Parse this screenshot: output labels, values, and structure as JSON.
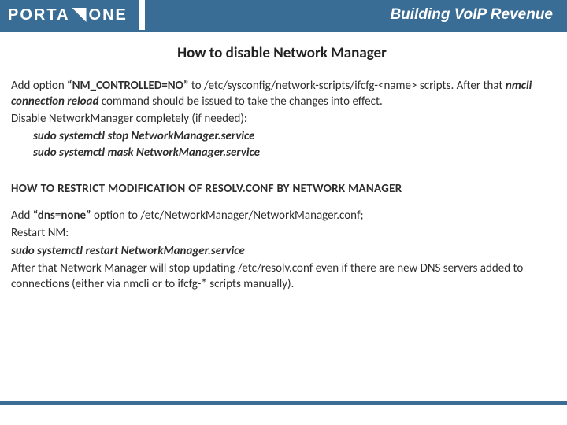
{
  "brand": {
    "name_left": "PORTA",
    "name_right": "ONE",
    "tagline": "Building VoIP Revenue",
    "accent_color": "#3a6d96"
  },
  "title": "How to disable Network Manager",
  "p1": {
    "t1": "Add option ",
    "opt": "“NM_CONTROLLED=NO”",
    "t2": " to /etc/sysconfig/network-scripts/ifcfg-<name> scripts. After that ",
    "cmd": "nmcli connection reload",
    "t3": " command should be issued to take the changes into effect."
  },
  "p2": "Disable NetworkManager completely (if needed):",
  "cmds1": {
    "a": "sudo systemctl stop NetworkManager.service",
    "b": "sudo systemctl mask NetworkManager.service"
  },
  "subhead": "HOW TO RESTRICT MODIFICATION OF RESOLV.CONF BY NETWORK MANAGER",
  "p3": {
    "t1": "Add ",
    "opt": "“dns=none”",
    "t2": " option to /etc/NetworkManager/NetworkManager.conf;"
  },
  "p4": "Restart NM:",
  "cmds2": {
    "a": " sudo systemctl restart NetworkManager.service"
  },
  "p5": "After that Network Manager will stop updating /etc/resolv.conf even if there are new DNS servers added to connections (either via nmcli or to ifcfg-* scripts manually)."
}
